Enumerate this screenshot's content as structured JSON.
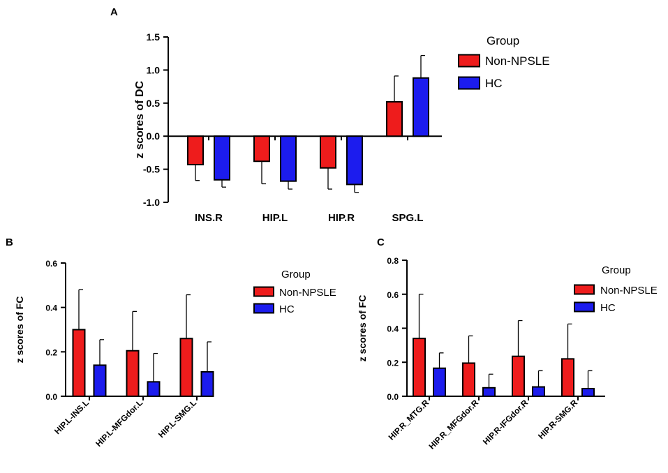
{
  "chart_data": [
    {
      "panel": "A",
      "type": "bar",
      "ylabel": "z scores of DC",
      "ylim": [
        -1.0,
        1.5
      ],
      "yticks": [
        "-1.0",
        "-0.5",
        "0.0",
        "0.5",
        "1.0",
        "1.5"
      ],
      "categories": [
        "INS.R",
        "HIP.L",
        "HIP.R",
        "SPG.L"
      ],
      "legend_title": "Group",
      "series": [
        {
          "name": "Non-NPSLE",
          "color": "#ee1c1c",
          "values": [
            -0.43,
            -0.38,
            -0.48,
            0.52
          ],
          "errors": [
            0.24,
            0.34,
            0.32,
            0.39
          ]
        },
        {
          "name": "HC",
          "color": "#1c1cee",
          "values": [
            -0.66,
            -0.68,
            -0.73,
            0.88
          ],
          "errors": [
            0.11,
            0.12,
            0.12,
            0.34
          ]
        }
      ]
    },
    {
      "panel": "B",
      "type": "bar",
      "ylabel": "z scores of FC",
      "ylim": [
        0,
        0.6
      ],
      "yticks": [
        "0.0",
        "0.2",
        "0.4",
        "0.6"
      ],
      "categories": [
        "HIP.L-INS.L",
        "HIP.L-MFGdor.L",
        "HIP.L-SMG.L"
      ],
      "legend_title": "Group",
      "series": [
        {
          "name": "Non-NPSLE",
          "color": "#ee1c1c",
          "values": [
            0.3,
            0.205,
            0.26
          ],
          "errors": [
            0.18,
            0.177,
            0.197
          ]
        },
        {
          "name": "HC",
          "color": "#1c1cee",
          "values": [
            0.14,
            0.065,
            0.11
          ],
          "errors": [
            0.115,
            0.128,
            0.135
          ]
        }
      ]
    },
    {
      "panel": "C",
      "type": "bar",
      "ylabel": "z scores of FC",
      "ylim": [
        0,
        0.8
      ],
      "yticks": [
        "0.0",
        "0.2",
        "0.4",
        "0.6",
        "0.8"
      ],
      "categories": [
        "HIP.R_MTG.R",
        "HIP.R_MFGdor.R",
        "HIP.R-IFGdor.R",
        "HIP.R-SMG.R"
      ],
      "legend_title": "Group",
      "series": [
        {
          "name": "Non-NPSLE",
          "color": "#ee1c1c",
          "values": [
            0.34,
            0.195,
            0.235,
            0.22
          ],
          "errors": [
            0.26,
            0.16,
            0.21,
            0.205
          ]
        },
        {
          "name": "HC",
          "color": "#1c1cee",
          "values": [
            0.165,
            0.05,
            0.055,
            0.045
          ],
          "errors": [
            0.09,
            0.08,
            0.095,
            0.105
          ]
        }
      ]
    }
  ]
}
